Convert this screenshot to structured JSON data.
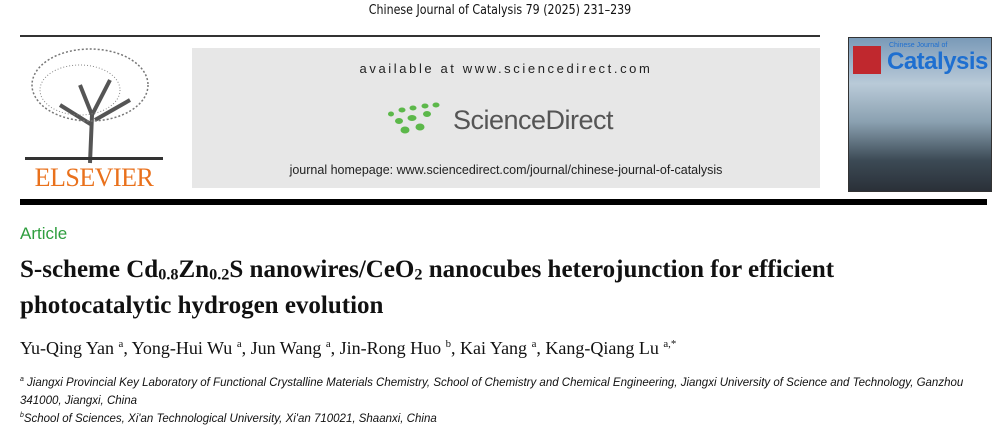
{
  "header": {
    "journal_citation": "Chinese Journal of Catalysis 79 (2025) 231–239"
  },
  "publisher": {
    "logo_text": "ELSEVIER"
  },
  "sciencedirect": {
    "available": "available at www.sciencedirect.com",
    "logo_text": "ScienceDirect",
    "homepage": "journal homepage: www.sciencedirect.com/journal/chinese-journal-of-catalysis",
    "brand_green": "#5cb84a"
  },
  "cover": {
    "title": "Catalysis",
    "subtitle": "Chinese Journal of"
  },
  "article": {
    "type_label": "Article",
    "accent": "#2e9e3e",
    "title_parts": {
      "p1": "S-scheme Cd",
      "s1": "0.8",
      "p2": "Zn",
      "s2": "0.2",
      "p3": "S nanowires/CeO",
      "s3": "2",
      "p4": " nanocubes heterojunction for efficient photocatalytic hydrogen evolution"
    },
    "authors": [
      {
        "name": "Yu-Qing Yan",
        "aff": "a"
      },
      {
        "name": "Yong-Hui Wu",
        "aff": "a"
      },
      {
        "name": "Jun Wang",
        "aff": "a"
      },
      {
        "name": "Jin-Rong Huo",
        "aff": "b"
      },
      {
        "name": "Kai Yang",
        "aff": "a"
      },
      {
        "name": "Kang-Qiang Lu",
        "aff": "a,*"
      }
    ],
    "affiliations": [
      {
        "mark": "a",
        "text": "Jiangxi Provincial Key Laboratory of Functional Crystalline Materials Chemistry, School of Chemistry and Chemical Engineering, Jiangxi University of Science and Technology, Ganzhou 341000, Jiangxi, China"
      },
      {
        "mark": "b",
        "text": "School of Sciences, Xi'an Technological University, Xi'an 710021, Shaanxi, China"
      }
    ]
  }
}
